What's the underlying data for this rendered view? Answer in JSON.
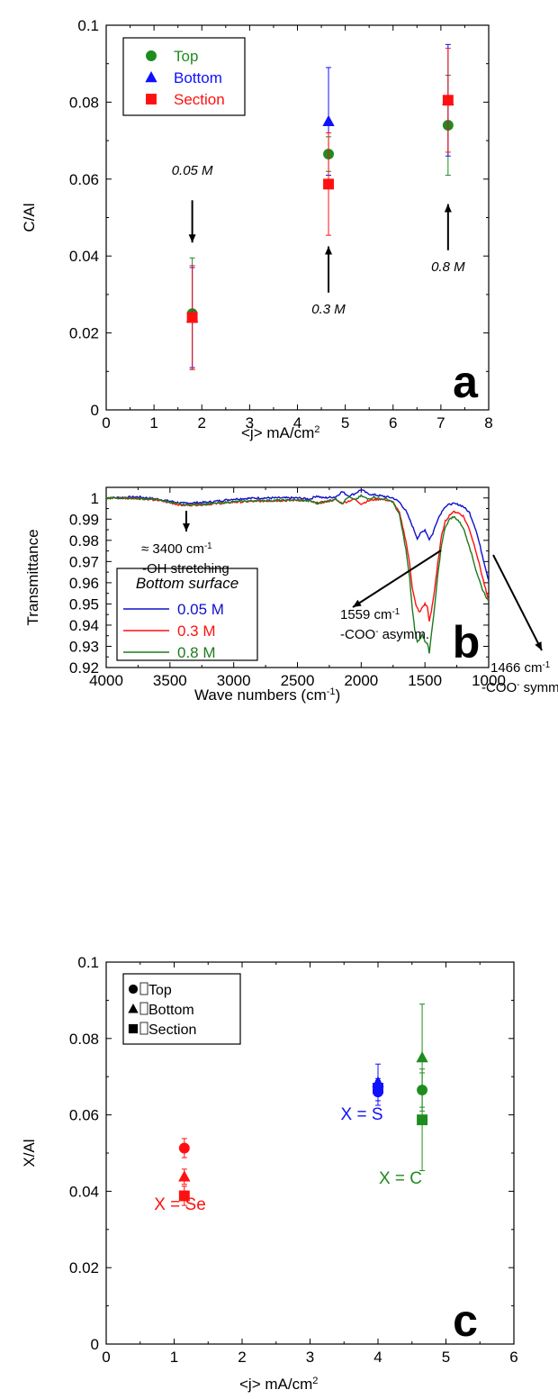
{
  "chart_data": [
    {
      "type": "scatter",
      "panel_label": "a",
      "xlabel": "<j> mA/cm",
      "xlabel_sup": "2",
      "ylabel": "C/Al",
      "xlim": [
        0,
        8
      ],
      "ylim": [
        0,
        0.1
      ],
      "xticks": [
        "0",
        "1",
        "2",
        "3",
        "4",
        "5",
        "6",
        "7",
        "8"
      ],
      "yticks": [
        "0",
        "0.02",
        "0.04",
        "0.06",
        "0.08",
        "0.1"
      ],
      "legend_position": "top-left",
      "series": [
        {
          "name": "Top",
          "color": "#1e8c1e",
          "marker": "circle",
          "x": [
            1.8,
            4.65,
            7.15
          ],
          "y": [
            0.025,
            0.0665,
            0.074
          ],
          "err": [
            0.0145,
            0.0045,
            0.013
          ]
        },
        {
          "name": "Bottom",
          "color": "#1010ff",
          "marker": "triangle",
          "x": [
            1.8,
            4.65,
            7.15
          ],
          "y": [
            0.024,
            0.075,
            0.0805
          ],
          "err": [
            0.013,
            0.014,
            0.0145
          ]
        },
        {
          "name": "Section",
          "color": "#ff1010",
          "marker": "square",
          "x": [
            1.8,
            4.65,
            7.15
          ],
          "y": [
            0.024,
            0.0587,
            0.0805
          ],
          "err": [
            0.0135,
            0.0133,
            0.0135
          ]
        }
      ],
      "annotations": [
        {
          "text": "0.05 M",
          "x": 1.8,
          "y": 0.0625,
          "arrow_from": 0.0545,
          "arrow_to": 0.0435
        },
        {
          "text": "0.3 M",
          "x": 4.65,
          "y": 0.0265,
          "arrow_from": 0.0305,
          "arrow_to": 0.0425
        },
        {
          "text": "0.8 M",
          "x": 7.15,
          "y": 0.0375,
          "arrow_from": 0.0415,
          "arrow_to": 0.0535
        }
      ]
    },
    {
      "type": "line",
      "panel_label": "b",
      "xlabel": "Wave numbers (cm",
      "xlabel_sup": "-1",
      "xlabel_end": ")",
      "ylabel": "Transmittance",
      "xlim": [
        4000,
        1000
      ],
      "ylim": [
        0.92,
        1.005
      ],
      "xticks": [
        "4000",
        "3500",
        "3000",
        "2500",
        "2000",
        "1500",
        "1000"
      ],
      "yticks": [
        "0.92",
        "0.93",
        "0.94",
        "0.95",
        "0.96",
        "0.97",
        "0.98",
        "0.99",
        "1"
      ],
      "legend_title": "Bottom surface",
      "legend_position": "bottom-left",
      "series": [
        {
          "name": "0.05 M",
          "color": "#1010cc",
          "x": [
            4000,
            3750,
            3600,
            3400,
            3200,
            3000,
            2800,
            2500,
            2400,
            2350,
            2300,
            2200,
            2150,
            2100,
            2050,
            2000,
            1950,
            1900,
            1800,
            1750,
            1700,
            1650,
            1600,
            1560,
            1530,
            1500,
            1466,
            1440,
            1400,
            1350,
            1300,
            1270,
            1230,
            1200,
            1150,
            1100,
            1050,
            1000
          ],
          "y": [
            1.0,
            1.0005,
            0.9995,
            0.9975,
            0.998,
            0.9995,
            1.0,
            1.0,
            0.9995,
            1.001,
            1.0,
            1.0005,
            1.003,
            1.001,
            1.002,
            1.004,
            1.002,
            1.0015,
            1.0005,
            1.0,
            0.998,
            0.994,
            0.987,
            0.981,
            0.9835,
            0.985,
            0.9805,
            0.983,
            0.99,
            0.9955,
            0.9972,
            0.9972,
            0.9968,
            0.996,
            0.993,
            0.985,
            0.973,
            0.961
          ]
        },
        {
          "name": "0.3 M",
          "color": "#ff1010",
          "x": [
            4000,
            3750,
            3600,
            3400,
            3200,
            3000,
            2800,
            2500,
            2400,
            2350,
            2300,
            2200,
            2150,
            2100,
            2050,
            2000,
            1950,
            1900,
            1850,
            1800,
            1750,
            1700,
            1650,
            1620,
            1600,
            1570,
            1540,
            1520,
            1500,
            1480,
            1466,
            1450,
            1430,
            1400,
            1370,
            1340,
            1300,
            1270,
            1240,
            1200,
            1150,
            1100,
            1050,
            1000
          ],
          "y": [
            1.0,
            0.9998,
            0.999,
            0.9965,
            0.997,
            0.998,
            0.9985,
            0.999,
            0.9985,
            0.9975,
            0.998,
            0.9992,
            0.9975,
            0.9985,
            0.9995,
            0.9972,
            0.9985,
            0.9992,
            0.9995,
            0.999,
            0.998,
            0.993,
            0.98,
            0.969,
            0.958,
            0.949,
            0.946,
            0.9485,
            0.95,
            0.9485,
            0.9415,
            0.9465,
            0.954,
            0.969,
            0.982,
            0.989,
            0.9925,
            0.9935,
            0.993,
            0.9915,
            0.985,
            0.975,
            0.963,
            0.951
          ]
        },
        {
          "name": "0.8 M",
          "color": "#1e7a1e",
          "x": [
            4000,
            3750,
            3600,
            3400,
            3200,
            3000,
            2800,
            2500,
            2400,
            2350,
            2300,
            2200,
            2150,
            2100,
            2050,
            2000,
            1950,
            1900,
            1850,
            1800,
            1750,
            1700,
            1650,
            1620,
            1600,
            1580,
            1560,
            1540,
            1520,
            1500,
            1480,
            1466,
            1450,
            1430,
            1400,
            1370,
            1340,
            1300,
            1270,
            1240,
            1200,
            1150,
            1100,
            1050,
            1000
          ],
          "y": [
            1.0,
            0.9998,
            0.9992,
            0.9968,
            0.9972,
            0.9982,
            0.9988,
            0.999,
            0.9985,
            0.9975,
            0.998,
            0.9995,
            0.9975,
            1.0005,
            0.999,
            1.001,
            0.9995,
            1.0005,
            0.9995,
            0.9995,
            0.998,
            0.992,
            0.976,
            0.962,
            0.948,
            0.938,
            0.932,
            0.9335,
            0.9355,
            0.9325,
            0.9315,
            0.9265,
            0.9355,
            0.945,
            0.963,
            0.978,
            0.9865,
            0.9905,
            0.991,
            0.9895,
            0.986,
            0.977,
            0.966,
            0.957,
            0.951
          ]
        }
      ],
      "annotations": [
        {
          "text": "≈ 3400 cm",
          "sup": "-1",
          "line2": "-OH stretching"
        },
        {
          "text": "1559 cm",
          "sup": "-1",
          "line2": "-COO",
          "line2_sup": "-",
          "line2_end": " asymm."
        },
        {
          "text": "1466 cm",
          "sup": "-1",
          "line2": "-COO",
          "line2_sup": "-",
          "line2_end": " symm."
        }
      ]
    },
    {
      "type": "scatter",
      "panel_label": "c",
      "xlabel": "<j> mA/cm",
      "xlabel_sup": "2",
      "ylabel": "X/Al",
      "xlim": [
        0,
        6
      ],
      "ylim": [
        0,
        0.1
      ],
      "xticks": [
        "0",
        "1",
        "2",
        "3",
        "4",
        "5",
        "6"
      ],
      "yticks": [
        "0",
        "0.02",
        "0.04",
        "0.06",
        "0.08",
        "0.1"
      ],
      "legend_position": "top-left",
      "legend": [
        {
          "name": "\u001fTop",
          "marker": "circle"
        },
        {
          "name": "\u001fBottom",
          "marker": "triangle"
        },
        {
          "name": "\u001fSection",
          "marker": "square"
        }
      ],
      "groups": [
        {
          "label": "X = Se",
          "color": "#ff1010",
          "x": 1.15,
          "points": [
            {
              "marker": "circle",
              "y": 0.0513,
              "err": 0.0025
            },
            {
              "marker": "triangle",
              "y": 0.0438,
              "err": 0.002
            },
            {
              "marker": "square",
              "y": 0.0388,
              "err": 0.0025
            }
          ]
        },
        {
          "label": "X = S",
          "color": "#1010ff",
          "x": 4.0,
          "points": [
            {
              "marker": "circle",
              "y": 0.066,
              "err": 0.0035
            },
            {
              "marker": "triangle",
              "y": 0.0685,
              "err": 0.0048
            },
            {
              "marker": "square",
              "y": 0.067,
              "err": 0.002
            }
          ]
        },
        {
          "label": "X = C",
          "color": "#1e8c1e",
          "x": 4.65,
          "points": [
            {
              "marker": "circle",
              "y": 0.0665,
              "err": 0.0045
            },
            {
              "marker": "triangle",
              "y": 0.075,
              "err": 0.014
            },
            {
              "marker": "square",
              "y": 0.0587,
              "err": 0.0133
            }
          ]
        }
      ]
    }
  ]
}
